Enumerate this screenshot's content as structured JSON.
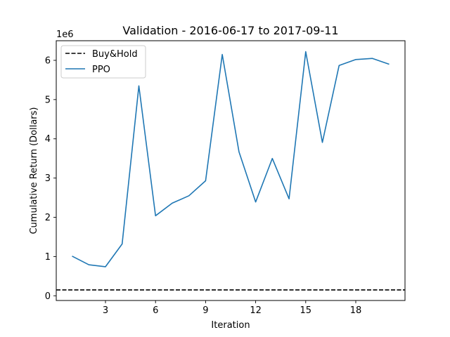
{
  "chart_data": {
    "type": "line",
    "title": "Validation - 2016-06-17 to 2017-09-11",
    "xlabel": "Iteration",
    "ylabel": "Cumulative Return (Dollars)",
    "y_offset_label": "1e6",
    "xlim": [
      0.05,
      20.95
    ],
    "ylim": [
      -120000,
      6500000
    ],
    "x_ticks": [
      3,
      6,
      9,
      12,
      15,
      18
    ],
    "y_ticks": [
      0,
      1000000,
      2000000,
      3000000,
      4000000,
      5000000,
      6000000
    ],
    "y_tick_labels": [
      "0",
      "1",
      "2",
      "3",
      "4",
      "5",
      "6"
    ],
    "grid": false,
    "legend_position": "upper-left",
    "series": [
      {
        "name": "Buy&Hold",
        "style": "dashed",
        "color": "#000000",
        "constant": 150000
      },
      {
        "name": "PPO",
        "style": "solid",
        "color": "#1f77b4",
        "x": [
          1,
          2,
          3,
          4,
          5,
          6,
          7,
          8,
          9,
          10,
          11,
          12,
          13,
          14,
          15,
          16,
          17,
          18,
          19,
          20
        ],
        "values": [
          1010000,
          790000,
          740000,
          1320000,
          5350000,
          2040000,
          2360000,
          2550000,
          2930000,
          6150000,
          3670000,
          2390000,
          3500000,
          2470000,
          6220000,
          3910000,
          5870000,
          6020000,
          6050000,
          5900000
        ]
      }
    ]
  }
}
